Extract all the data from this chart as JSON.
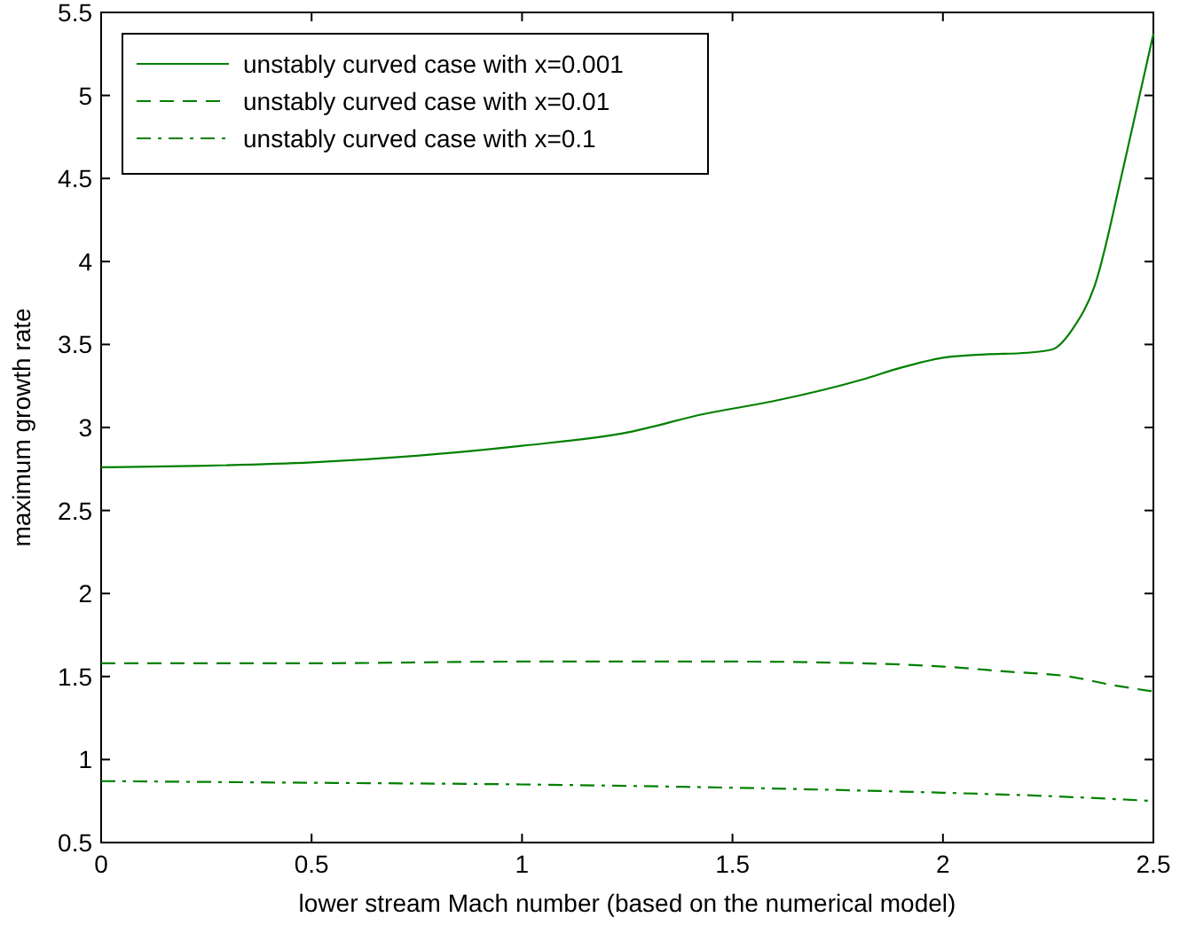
{
  "chart_data": {
    "type": "line",
    "xlabel": "lower stream Mach number (based on the numerical model)",
    "ylabel": "maximum growth rate",
    "xlim": [
      0,
      2.5
    ],
    "xticks": [
      0,
      0.5,
      1,
      1.5,
      2,
      2.5
    ],
    "ylim": [
      0.5,
      5.5
    ],
    "yticks": [
      0.5,
      1,
      1.5,
      2,
      2.5,
      3,
      3.5,
      4,
      4.5,
      5,
      5.5
    ],
    "legend": "top left",
    "grid": false,
    "series": [
      {
        "name": "unstably curved case with x=0.001",
        "color": "#008000",
        "line_style": "solid",
        "x": [
          0,
          0.25,
          0.5,
          0.75,
          1,
          1.25,
          1.43,
          1.6,
          1.81,
          1.9,
          2,
          2.1,
          2.2,
          2.26,
          2.31,
          2.36,
          2.43,
          2.5
        ],
        "values": [
          2.76,
          2.77,
          2.79,
          2.83,
          2.89,
          2.97,
          3.08,
          3.16,
          3.29,
          3.36,
          3.42,
          3.44,
          3.45,
          3.47,
          3.6,
          3.85,
          4.58,
          5.37
        ]
      },
      {
        "name": "unstably curved case with x=0.01",
        "color": "#008000",
        "line_style": "dashed",
        "x": [
          0,
          0.5,
          1,
          1.5,
          1.8,
          2,
          2.15,
          2.3,
          2.4,
          2.5
        ],
        "values": [
          1.58,
          1.58,
          1.59,
          1.59,
          1.58,
          1.56,
          1.53,
          1.5,
          1.45,
          1.41
        ]
      },
      {
        "name": "unstably curved case with x=0.1",
        "color": "#008000",
        "line_style": "dashdot",
        "x": [
          0,
          0.5,
          1,
          1.5,
          2,
          2.25,
          2.5
        ],
        "values": [
          0.87,
          0.86,
          0.85,
          0.83,
          0.8,
          0.78,
          0.75
        ]
      }
    ]
  }
}
